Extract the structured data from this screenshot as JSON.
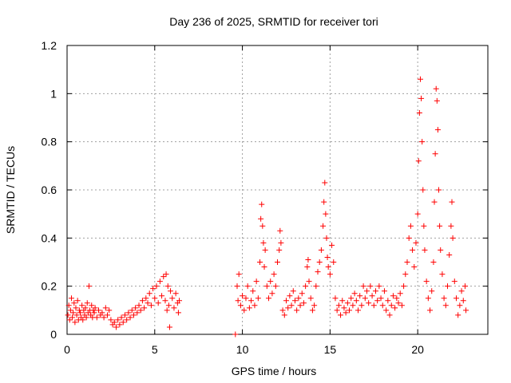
{
  "chart_data": {
    "type": "scatter",
    "title": "Day 236 of 2025, SRMTID for receiver tori",
    "xlabel": "GPS time / hours",
    "ylabel": "SRMTID / TECUs",
    "xlim": [
      0,
      24
    ],
    "ylim": [
      0,
      1.2
    ],
    "xticks": [
      0,
      5,
      10,
      15,
      20
    ],
    "xtick_labels": [
      "0",
      "5",
      "10",
      "15",
      "20"
    ],
    "yticks": [
      0,
      0.2,
      0.4,
      0.6,
      0.8,
      1,
      1.2
    ],
    "ytick_labels": [
      "0",
      "0.2",
      "0.4",
      "0.6",
      "0.8",
      "1",
      "1.2"
    ],
    "grid": true,
    "marker": "+",
    "color": "#ff0000",
    "series": [
      {
        "name": "SRMTID",
        "points": [
          [
            0.05,
            0.08
          ],
          [
            0.1,
            0.12
          ],
          [
            0.15,
            0.06
          ],
          [
            0.2,
            0.1
          ],
          [
            0.25,
            0.15
          ],
          [
            0.3,
            0.07
          ],
          [
            0.35,
            0.09
          ],
          [
            0.4,
            0.13
          ],
          [
            0.45,
            0.05
          ],
          [
            0.5,
            0.11
          ],
          [
            0.55,
            0.08
          ],
          [
            0.6,
            0.14
          ],
          [
            0.65,
            0.06
          ],
          [
            0.7,
            0.1
          ],
          [
            0.75,
            0.09
          ],
          [
            0.8,
            0.07
          ],
          [
            0.85,
            0.12
          ],
          [
            0.9,
            0.06
          ],
          [
            0.95,
            0.1
          ],
          [
            1.0,
            0.08
          ],
          [
            1.05,
            0.11
          ],
          [
            1.1,
            0.07
          ],
          [
            1.15,
            0.13
          ],
          [
            1.2,
            0.09
          ],
          [
            1.25,
            0.2
          ],
          [
            1.3,
            0.1
          ],
          [
            1.35,
            0.08
          ],
          [
            1.4,
            0.12
          ],
          [
            1.45,
            0.07
          ],
          [
            1.5,
            0.1
          ],
          [
            1.55,
            0.09
          ],
          [
            1.6,
            0.11
          ],
          [
            1.7,
            0.07
          ],
          [
            1.8,
            0.1
          ],
          [
            1.9,
            0.08
          ],
          [
            2.0,
            0.09
          ],
          [
            2.1,
            0.07
          ],
          [
            2.2,
            0.11
          ],
          [
            2.3,
            0.08
          ],
          [
            2.4,
            0.1
          ],
          [
            2.5,
            0.06
          ],
          [
            2.6,
            0.04
          ],
          [
            2.7,
            0.05
          ],
          [
            2.8,
            0.03
          ],
          [
            2.9,
            0.06
          ],
          [
            3.0,
            0.04
          ],
          [
            3.1,
            0.07
          ],
          [
            3.2,
            0.05
          ],
          [
            3.3,
            0.08
          ],
          [
            3.4,
            0.06
          ],
          [
            3.5,
            0.09
          ],
          [
            3.6,
            0.07
          ],
          [
            3.7,
            0.1
          ],
          [
            3.8,
            0.08
          ],
          [
            3.9,
            0.11
          ],
          [
            4.0,
            0.09
          ],
          [
            4.1,
            0.12
          ],
          [
            4.2,
            0.1
          ],
          [
            4.3,
            0.14
          ],
          [
            4.4,
            0.11
          ],
          [
            4.5,
            0.15
          ],
          [
            4.6,
            0.13
          ],
          [
            4.7,
            0.17
          ],
          [
            4.8,
            0.12
          ],
          [
            4.9,
            0.19
          ],
          [
            5.0,
            0.15
          ],
          [
            5.1,
            0.2
          ],
          [
            5.2,
            0.13
          ],
          [
            5.3,
            0.22
          ],
          [
            5.4,
            0.16
          ],
          [
            5.5,
            0.24
          ],
          [
            5.6,
            0.14
          ],
          [
            5.65,
            0.25
          ],
          [
            5.7,
            0.1
          ],
          [
            5.75,
            0.2
          ],
          [
            5.8,
            0.12
          ],
          [
            5.85,
            0.03
          ],
          [
            5.9,
            0.18
          ],
          [
            6.0,
            0.15
          ],
          [
            6.1,
            0.11
          ],
          [
            6.2,
            0.17
          ],
          [
            6.3,
            0.13
          ],
          [
            6.35,
            0.09
          ],
          [
            6.4,
            0.14
          ],
          [
            9.6,
            0.0
          ],
          [
            9.7,
            0.2
          ],
          [
            9.75,
            0.14
          ],
          [
            9.8,
            0.25
          ],
          [
            9.9,
            0.12
          ],
          [
            10.0,
            0.16
          ],
          [
            10.1,
            0.1
          ],
          [
            10.2,
            0.15
          ],
          [
            10.3,
            0.2
          ],
          [
            10.4,
            0.11
          ],
          [
            10.5,
            0.14
          ],
          [
            10.6,
            0.18
          ],
          [
            10.7,
            0.12
          ],
          [
            10.8,
            0.22
          ],
          [
            10.9,
            0.15
          ],
          [
            11.0,
            0.3
          ],
          [
            11.05,
            0.48
          ],
          [
            11.1,
            0.54
          ],
          [
            11.15,
            0.45
          ],
          [
            11.2,
            0.38
          ],
          [
            11.25,
            0.28
          ],
          [
            11.3,
            0.35
          ],
          [
            11.4,
            0.2
          ],
          [
            11.5,
            0.15
          ],
          [
            11.6,
            0.22
          ],
          [
            11.7,
            0.17
          ],
          [
            11.8,
            0.25
          ],
          [
            11.9,
            0.2
          ],
          [
            12.0,
            0.3
          ],
          [
            12.1,
            0.35
          ],
          [
            12.15,
            0.43
          ],
          [
            12.2,
            0.38
          ],
          [
            12.3,
            0.1
          ],
          [
            12.4,
            0.08
          ],
          [
            12.5,
            0.14
          ],
          [
            12.6,
            0.11
          ],
          [
            12.7,
            0.16
          ],
          [
            12.8,
            0.12
          ],
          [
            12.9,
            0.18
          ],
          [
            13.0,
            0.14
          ],
          [
            13.1,
            0.1
          ],
          [
            13.2,
            0.15
          ],
          [
            13.3,
            0.12
          ],
          [
            13.4,
            0.17
          ],
          [
            13.5,
            0.13
          ],
          [
            13.6,
            0.2
          ],
          [
            13.7,
            0.28
          ],
          [
            13.75,
            0.31
          ],
          [
            13.8,
            0.22
          ],
          [
            13.9,
            0.15
          ],
          [
            14.0,
            0.1
          ],
          [
            14.1,
            0.12
          ],
          [
            14.2,
            0.2
          ],
          [
            14.3,
            0.26
          ],
          [
            14.4,
            0.3
          ],
          [
            14.5,
            0.35
          ],
          [
            14.6,
            0.45
          ],
          [
            14.65,
            0.55
          ],
          [
            14.7,
            0.63
          ],
          [
            14.75,
            0.5
          ],
          [
            14.8,
            0.4
          ],
          [
            14.85,
            0.32
          ],
          [
            14.9,
            0.28
          ],
          [
            15.0,
            0.25
          ],
          [
            15.1,
            0.37
          ],
          [
            15.2,
            0.3
          ],
          [
            15.3,
            0.15
          ],
          [
            15.4,
            0.1
          ],
          [
            15.5,
            0.12
          ],
          [
            15.6,
            0.08
          ],
          [
            15.7,
            0.14
          ],
          [
            15.8,
            0.11
          ],
          [
            15.9,
            0.09
          ],
          [
            16.0,
            0.13
          ],
          [
            16.1,
            0.1
          ],
          [
            16.2,
            0.15
          ],
          [
            16.3,
            0.12
          ],
          [
            16.4,
            0.17
          ],
          [
            16.5,
            0.14
          ],
          [
            16.6,
            0.1
          ],
          [
            16.7,
            0.16
          ],
          [
            16.8,
            0.12
          ],
          [
            16.9,
            0.2
          ],
          [
            17.0,
            0.15
          ],
          [
            17.1,
            0.18
          ],
          [
            17.2,
            0.13
          ],
          [
            17.3,
            0.2
          ],
          [
            17.4,
            0.16
          ],
          [
            17.5,
            0.12
          ],
          [
            17.6,
            0.18
          ],
          [
            17.7,
            0.14
          ],
          [
            17.8,
            0.2
          ],
          [
            17.9,
            0.15
          ],
          [
            18.0,
            0.12
          ],
          [
            18.1,
            0.18
          ],
          [
            18.2,
            0.1
          ],
          [
            18.3,
            0.14
          ],
          [
            18.4,
            0.08
          ],
          [
            18.5,
            0.12
          ],
          [
            18.6,
            0.16
          ],
          [
            18.7,
            0.11
          ],
          [
            18.8,
            0.15
          ],
          [
            18.9,
            0.13
          ],
          [
            19.0,
            0.17
          ],
          [
            19.1,
            0.12
          ],
          [
            19.2,
            0.2
          ],
          [
            19.3,
            0.25
          ],
          [
            19.4,
            0.3
          ],
          [
            19.5,
            0.4
          ],
          [
            19.6,
            0.45
          ],
          [
            19.7,
            0.35
          ],
          [
            19.8,
            0.28
          ],
          [
            19.9,
            0.38
          ],
          [
            20.0,
            0.5
          ],
          [
            20.05,
            0.72
          ],
          [
            20.1,
            0.92
          ],
          [
            20.15,
            1.06
          ],
          [
            20.2,
            0.98
          ],
          [
            20.25,
            0.8
          ],
          [
            20.3,
            0.6
          ],
          [
            20.35,
            0.45
          ],
          [
            20.4,
            0.35
          ],
          [
            20.5,
            0.22
          ],
          [
            20.6,
            0.15
          ],
          [
            20.7,
            0.1
          ],
          [
            20.8,
            0.18
          ],
          [
            20.9,
            0.3
          ],
          [
            20.95,
            0.55
          ],
          [
            21.0,
            0.75
          ],
          [
            21.05,
            1.02
          ],
          [
            21.1,
            0.97
          ],
          [
            21.15,
            0.85
          ],
          [
            21.2,
            0.6
          ],
          [
            21.25,
            0.45
          ],
          [
            21.3,
            0.35
          ],
          [
            21.4,
            0.25
          ],
          [
            21.5,
            0.15
          ],
          [
            21.6,
            0.12
          ],
          [
            21.7,
            0.2
          ],
          [
            21.8,
            0.33
          ],
          [
            21.9,
            0.45
          ],
          [
            21.95,
            0.55
          ],
          [
            22.0,
            0.4
          ],
          [
            22.1,
            0.22
          ],
          [
            22.2,
            0.15
          ],
          [
            22.3,
            0.08
          ],
          [
            22.4,
            0.12
          ],
          [
            22.5,
            0.18
          ],
          [
            22.6,
            0.14
          ],
          [
            22.7,
            0.2
          ],
          [
            22.75,
            0.1
          ]
        ]
      }
    ]
  }
}
